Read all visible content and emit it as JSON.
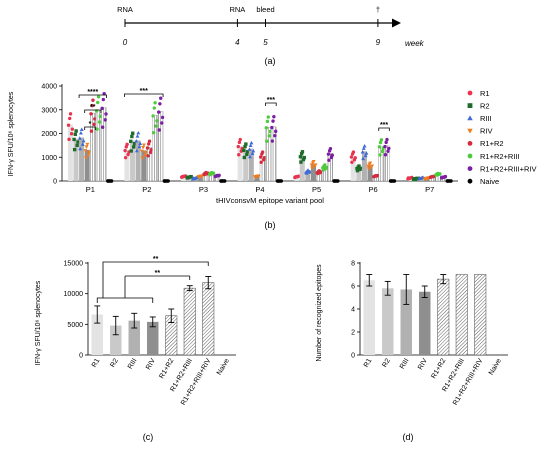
{
  "timeline": {
    "events": [
      {
        "week": 0,
        "label": "RNA",
        "tick": "0"
      },
      {
        "week": 4,
        "label": "RNA",
        "tick": "4"
      },
      {
        "week": 5,
        "label": "bleed",
        "tick": "5"
      },
      {
        "week": 9,
        "label": "†",
        "tick": "9"
      }
    ],
    "axis_label": "week",
    "panel_label": "(a)"
  },
  "chart_data": [
    {
      "panel": "(b)",
      "type": "bar",
      "xlabel": "tHIVconsvM epitope variant pool",
      "ylabel": "IFN-γ SFU/10⁶ splenocytes",
      "ylim": [
        0,
        4000
      ],
      "yticks": [
        "0",
        "1000",
        "2000",
        "3000",
        "4000"
      ],
      "categories": [
        "P1",
        "P2",
        "P3",
        "P4",
        "P5",
        "P6",
        "P7"
      ],
      "legend_position": "right",
      "series": [
        {
          "name": "R1",
          "color": "#e8344e",
          "marker": "circle",
          "values": [
            2380,
            1310,
            190,
            1480,
            180,
            1040,
            120
          ]
        },
        {
          "name": "R2",
          "color": "#1f6b2a",
          "marker": "square",
          "values": [
            1780,
            1700,
            160,
            1320,
            1050,
            550,
            80
          ]
        },
        {
          "name": "RIII",
          "color": "#3f6ad8",
          "marker": "triangle-up",
          "values": [
            1830,
            1710,
            110,
            1360,
            400,
            1250,
            120
          ]
        },
        {
          "name": "RIV",
          "color": "#f07c1e",
          "marker": "triangle-down",
          "values": [
            1310,
            1290,
            200,
            200,
            710,
            660,
            110
          ]
        },
        {
          "name": "R1+R2",
          "color": "#d62a3e",
          "marker": "circle",
          "values": [
            2860,
            1420,
            320,
            1040,
            380,
            210,
            180
          ]
        },
        {
          "name": "R1+R2+RIII",
          "color": "#4ecb3c",
          "marker": "circle",
          "values": [
            2980,
            2770,
            320,
            2270,
            590,
            1470,
            290
          ]
        },
        {
          "name": "R1+R2+RIII+RIV",
          "color": "#7b1fa2",
          "marker": "circle",
          "values": [
            3090,
            2930,
            220,
            2280,
            1160,
            1480,
            160
          ]
        },
        {
          "name": "Naive",
          "color": "#000000",
          "marker": "circle",
          "values": [
            0,
            0,
            0,
            0,
            0,
            0,
            0
          ]
        }
      ],
      "significance": [
        {
          "category": "P1",
          "label": "*"
        },
        {
          "category": "P1",
          "label": "**"
        },
        {
          "category": "P1",
          "label": "****"
        },
        {
          "category": "P2",
          "label": "***"
        },
        {
          "category": "P4",
          "label": "***"
        },
        {
          "category": "P6",
          "label": "***"
        }
      ]
    },
    {
      "panel": "(c)",
      "type": "bar",
      "ylabel": "IFN-γ SFU/10⁶ splenocytes",
      "ylim": [
        0,
        15000
      ],
      "yticks": [
        "0",
        "5000",
        "10000",
        "15000"
      ],
      "categories": [
        "R1",
        "R2",
        "RIII",
        "RIV",
        "R1+R2",
        "R1+R2+RIII",
        "R1+R2+RIII+RIV",
        "Naive"
      ],
      "values": [
        6600,
        4800,
        5600,
        5400,
        6400,
        10900,
        11800,
        0
      ],
      "errors": [
        1400,
        1500,
        1200,
        800,
        1100,
        400,
        1000,
        0
      ],
      "significance": [
        {
          "label": "**"
        },
        {
          "label": "**"
        }
      ]
    },
    {
      "panel": "(d)",
      "type": "bar",
      "ylabel": "Number of  recognized epitopes",
      "ylim": [
        0,
        8
      ],
      "yticks": [
        "0",
        "2",
        "4",
        "6",
        "8"
      ],
      "categories": [
        "R1",
        "R2",
        "RIII",
        "RIV",
        "R1+R2",
        "R1+R2+RIII",
        "R1+R2+RIII+RIV",
        "Naive"
      ],
      "values": [
        6.5,
        5.8,
        5.7,
        5.5,
        6.6,
        7.0,
        7.0,
        0
      ],
      "errors": [
        0.5,
        0.6,
        1.3,
        0.5,
        0.4,
        0,
        0,
        0
      ]
    }
  ],
  "panel_labels": {
    "b": "(b)",
    "c": "(c)",
    "d": "(d)"
  }
}
